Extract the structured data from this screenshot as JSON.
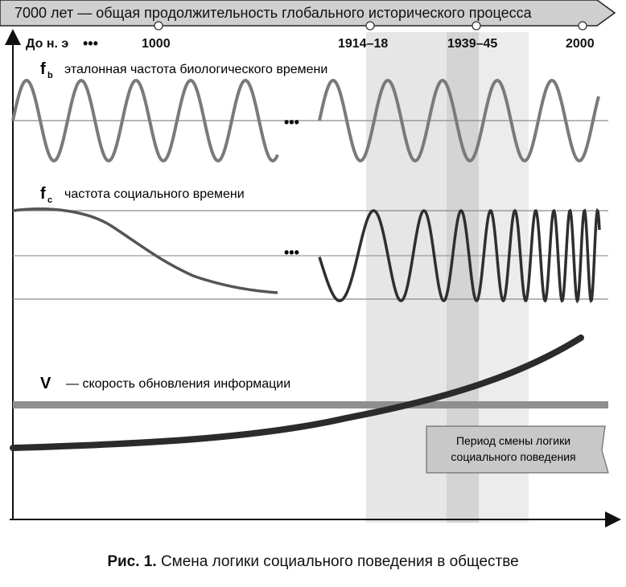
{
  "banner": {
    "text": "7000 лет — общая продолжительность глобального исторического процесса"
  },
  "timeline": [
    {
      "label": "До н. э",
      "dots": "•••"
    },
    {
      "label": "1000"
    },
    {
      "label": "1914–18"
    },
    {
      "label": "1939–45"
    },
    {
      "label": "2000"
    }
  ],
  "panels": {
    "fb": {
      "symbol": "f",
      "subscript": "b",
      "label": "эталонная частота биологического времени"
    },
    "fc": {
      "symbol": "f",
      "subscript": "c",
      "label": "частота социального времени"
    },
    "v": {
      "symbol": "V",
      "label": "— скорость обновления информации"
    }
  },
  "ellipsis": "•••",
  "period_box": {
    "line1": "Период смены логики",
    "line2": "социального поведения"
  },
  "caption": {
    "prefix": "Рис. 1.",
    "text": "Смена логики социального поведения в обществе"
  },
  "colors": {
    "wave": "#7a7a7a",
    "curve": "#2b2b2b",
    "band_light": "#e2e2e2",
    "band_dark": "#cfcfcf",
    "box": "#c8c8c8"
  }
}
